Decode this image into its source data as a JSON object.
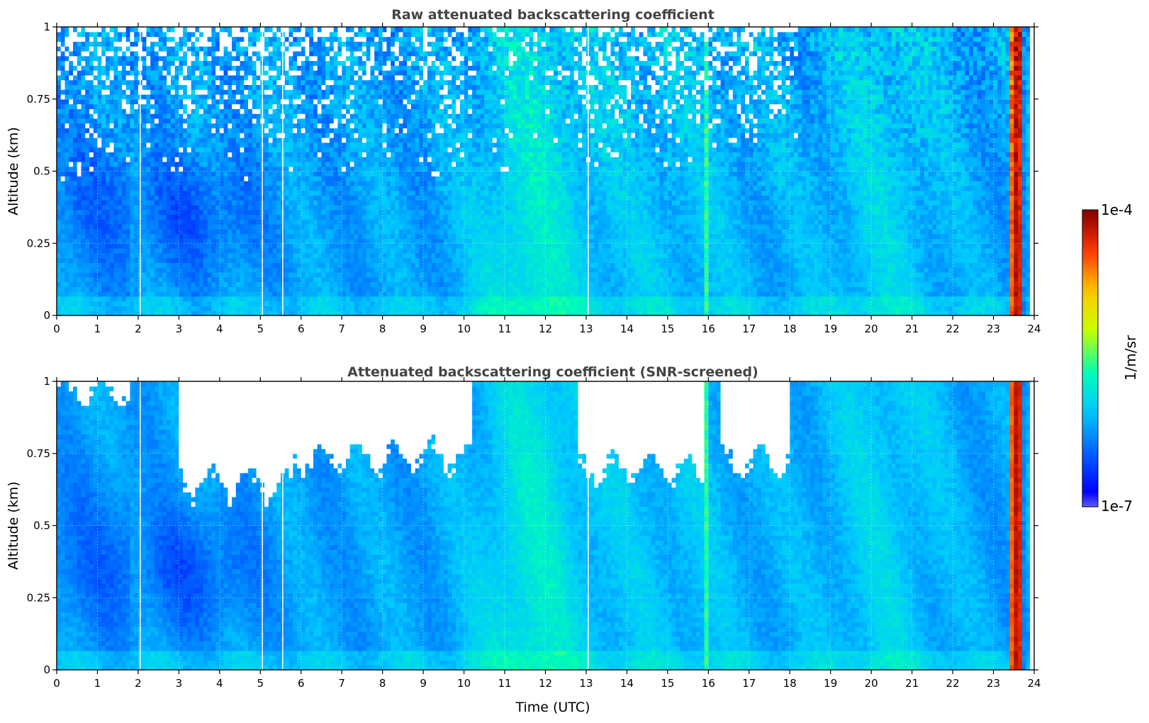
{
  "chart_data": [
    {
      "type": "heatmap",
      "title": "Raw attenuated backscattering coefficient",
      "xlabel": "",
      "ylabel": "Altitude (km)",
      "xlim": [
        0,
        24
      ],
      "ylim": [
        0,
        1
      ],
      "xticks": [
        "0",
        "1",
        "2",
        "3",
        "4",
        "5",
        "6",
        "7",
        "8",
        "9",
        "10",
        "11",
        "12",
        "13",
        "14",
        "15",
        "16",
        "17",
        "18",
        "19",
        "20",
        "21",
        "22",
        "23",
        "24"
      ],
      "yticks": [
        "0",
        "0.25",
        "0.5",
        "0.75",
        "1"
      ],
      "grid": true,
      "screened": false
    },
    {
      "type": "heatmap",
      "title": "Attenuated backscattering coefficient (SNR-screened)",
      "xlabel": "Time (UTC)",
      "ylabel": "Altitude (km)",
      "xlim": [
        0,
        24
      ],
      "ylim": [
        0,
        1
      ],
      "xticks": [
        "0",
        "1",
        "2",
        "3",
        "4",
        "5",
        "6",
        "7",
        "8",
        "9",
        "10",
        "11",
        "12",
        "13",
        "14",
        "15",
        "16",
        "17",
        "18",
        "19",
        "20",
        "21",
        "22",
        "23",
        "24"
      ],
      "yticks": [
        "0",
        "0.25",
        "0.5",
        "0.75",
        "1"
      ],
      "grid": true,
      "screened": true
    }
  ],
  "colorbar": {
    "label": "1/m/sr",
    "min_label": "1e-7",
    "max_label": "1e-4",
    "scale": "log",
    "colormap": [
      "#ffffff",
      "#0000ff",
      "#0064ff",
      "#00c8ff",
      "#00ffb4",
      "#c8ff00",
      "#ffc800",
      "#ff3200",
      "#800000"
    ]
  },
  "features": {
    "gap_times_utc": [
      2.05,
      5.05,
      5.55,
      13.05
    ],
    "aerosol_maximum_utc": 11.6,
    "thin_layer_utc": 15.95,
    "strong_return_utc": [
      23.4,
      23.75
    ],
    "screened_regions": [
      {
        "t0": 0.0,
        "t1": 1.8,
        "alt_floor_km": 0.97
      },
      {
        "t0": 3.0,
        "t1": 5.8,
        "alt_floor_km": 0.65
      },
      {
        "t0": 5.8,
        "t1": 10.2,
        "alt_floor_km": 0.74
      },
      {
        "t0": 12.8,
        "t1": 15.9,
        "alt_floor_km": 0.7
      },
      {
        "t0": 16.3,
        "t1": 18.0,
        "alt_floor_km": 0.72
      }
    ]
  }
}
